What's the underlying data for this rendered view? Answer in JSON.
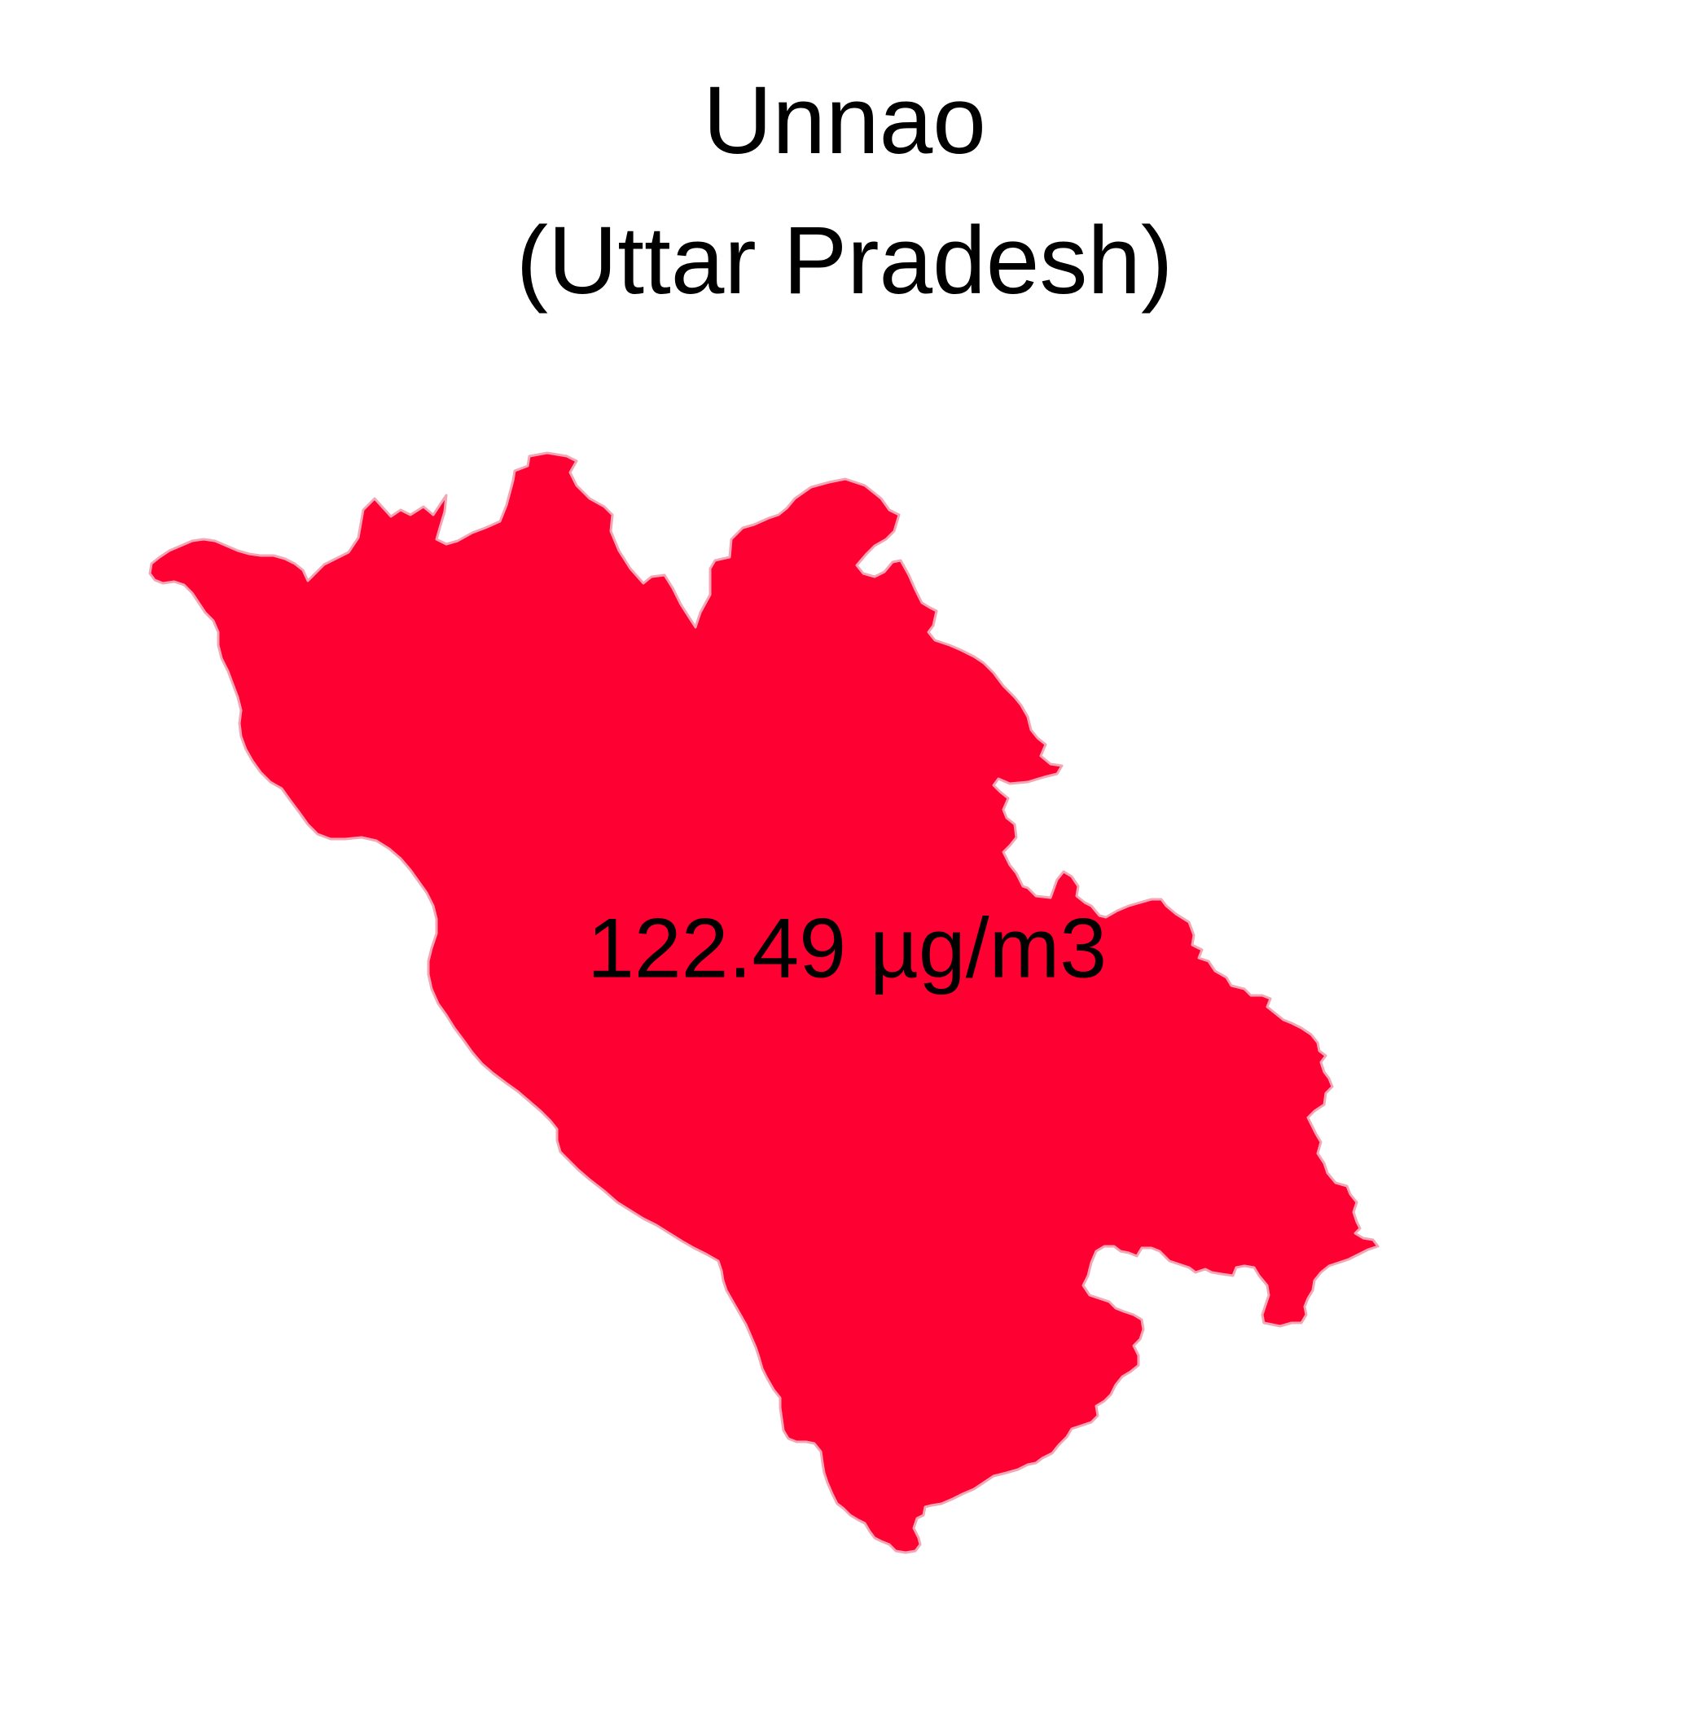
{
  "title": {
    "line1": "Unnao",
    "line2": "(Uttar Pradesh)"
  },
  "map": {
    "region_name": "Unnao",
    "value_label": "122.49 µg/m3",
    "value": 122.49,
    "unit": "µg/m3",
    "fill_color": "#FF0033",
    "border_color": "#F4A6B4",
    "background_color": "#FFFFFF"
  }
}
